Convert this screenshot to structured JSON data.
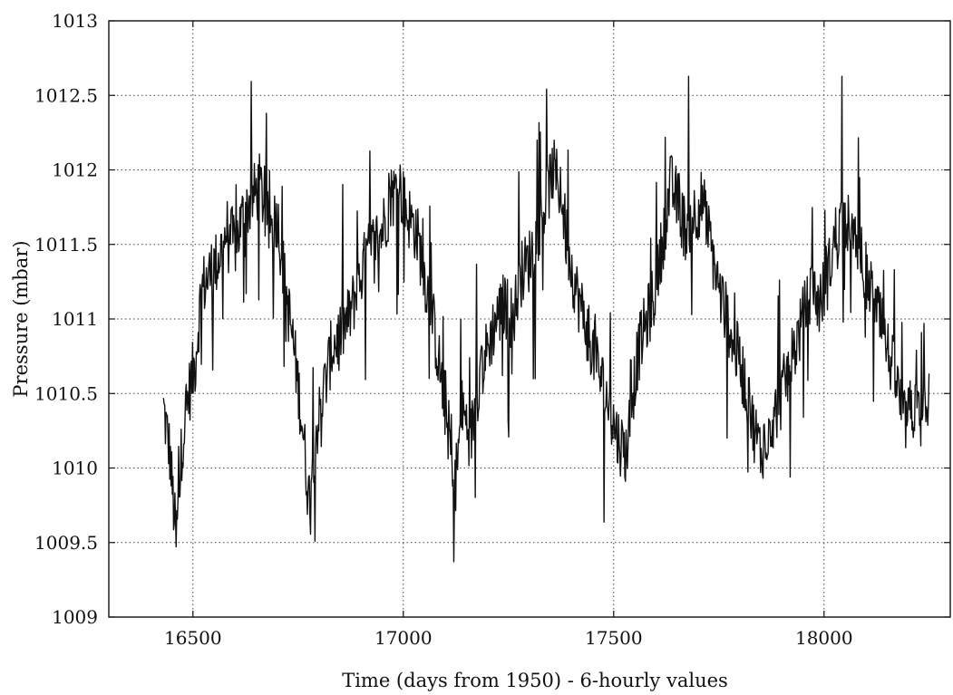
{
  "chart_data": {
    "type": "line",
    "title": "",
    "xlabel": "Time (days from 1950) - 6-hourly values",
    "ylabel": "Pressure (mbar)",
    "xlim": [
      16300,
      18300
    ],
    "ylim": [
      1009,
      1013
    ],
    "grid": true,
    "legend": "none",
    "x_ticks": [
      16500,
      17000,
      17500,
      18000
    ],
    "x_tick_labels": [
      "16500",
      "17000",
      "17500",
      "18000"
    ],
    "y_ticks": [
      1009,
      1009.5,
      1010,
      1010.5,
      1011,
      1011.5,
      1012,
      1012.5,
      1013
    ],
    "y_tick_labels": [
      "1009",
      "1009.5",
      "1010",
      "1010.5",
      "1011",
      "1011.5",
      "1012",
      "1012.5",
      "1013"
    ],
    "series": [
      {
        "line_color": "#111111",
        "x": [
          16430,
          16445,
          16460,
          16475,
          16490,
          16505,
          16520,
          16540,
          16560,
          16580,
          16600,
          16620,
          16640,
          16660,
          16680,
          16700,
          16720,
          16740,
          16760,
          16775,
          16790,
          16810,
          16830,
          16850,
          16870,
          16890,
          16910,
          16930,
          16950,
          16970,
          16990,
          17010,
          17030,
          17050,
          17070,
          17090,
          17110,
          17120,
          17140,
          17160,
          17180,
          17200,
          17220,
          17240,
          17260,
          17280,
          17300,
          17320,
          17340,
          17355,
          17370,
          17390,
          17410,
          17430,
          17450,
          17470,
          17490,
          17510,
          17530,
          17545,
          17560,
          17580,
          17600,
          17620,
          17635,
          17650,
          17670,
          17690,
          17710,
          17730,
          17750,
          17770,
          17790,
          17810,
          17830,
          17850,
          17870,
          17890,
          17910,
          17930,
          17950,
          17970,
          17990,
          18010,
          18030,
          18050,
          18070,
          18090,
          18110,
          18130,
          18150,
          18170,
          18190,
          18210,
          18230,
          18250
        ],
        "y": [
          1010.4,
          1010.1,
          1009.5,
          1010.2,
          1010.5,
          1010.7,
          1011.2,
          1011.3,
          1011.4,
          1011.6,
          1011.5,
          1011.7,
          1011.8,
          1011.9,
          1011.6,
          1011.7,
          1011.2,
          1010.8,
          1010.3,
          1009.8,
          1010.2,
          1010.5,
          1010.8,
          1010.9,
          1011.0,
          1011.2,
          1011.4,
          1011.5,
          1011.6,
          1011.8,
          1011.9,
          1011.7,
          1011.6,
          1011.3,
          1011.0,
          1010.6,
          1010.2,
          1009.8,
          1010.4,
          1010.2,
          1010.6,
          1010.8,
          1011.0,
          1011.1,
          1011.0,
          1011.3,
          1011.4,
          1011.6,
          1011.8,
          1012.0,
          1011.9,
          1011.5,
          1011.2,
          1011.0,
          1010.8,
          1010.6,
          1010.4,
          1010.2,
          1010.1,
          1010.5,
          1010.8,
          1011.0,
          1011.2,
          1011.6,
          1011.9,
          1011.8,
          1011.6,
          1011.7,
          1011.8,
          1011.5,
          1011.2,
          1011.0,
          1010.8,
          1010.6,
          1010.3,
          1010.1,
          1010.3,
          1010.4,
          1010.6,
          1010.8,
          1011.0,
          1011.2,
          1011.1,
          1011.3,
          1011.6,
          1011.7,
          1011.5,
          1011.4,
          1011.2,
          1011.0,
          1010.8,
          1010.6,
          1010.3,
          1010.4,
          1010.3,
          1010.5
        ]
      }
    ]
  }
}
